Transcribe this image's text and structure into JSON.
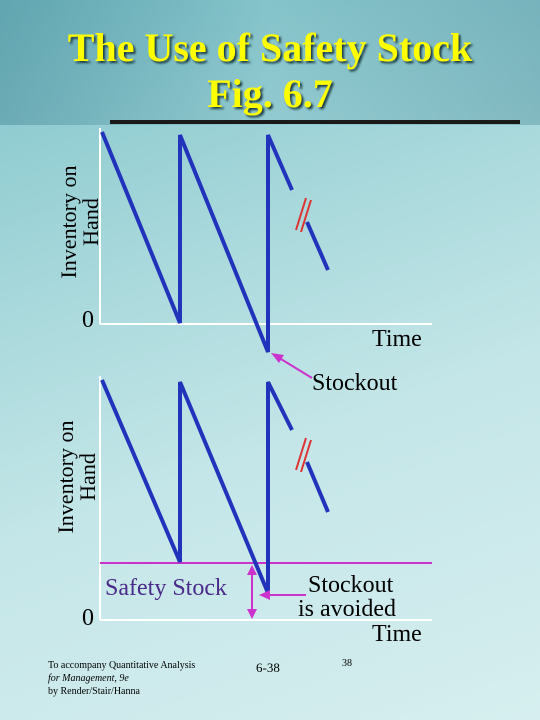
{
  "slide": {
    "title_line1": "The Use of Safety Stock",
    "title_line2": "Fig. 6.7"
  },
  "top_diagram": {
    "y_label_line1": "Inventory on",
    "y_label_line2": "Hand",
    "origin_label": "0",
    "x_label": "Time",
    "stockout_label": "Stockout"
  },
  "bottom_diagram": {
    "y_label_line1": "Inventory on",
    "y_label_line2": "Hand",
    "origin_label": "0",
    "safety_stock_label": "Safety Stock",
    "stockout_avoided_line1": "Stockout",
    "stockout_avoided_line2": "is avoided",
    "x_label": "Time"
  },
  "footer": {
    "credit_line1": "To accompany Quantitative Analysis",
    "credit_line2": "for Management, 9e",
    "credit_line3": "by Render/Stair/Hanna",
    "slide_ref": "6-38",
    "page_number": "38"
  },
  "colors": {
    "title": "#ffff00",
    "sawtooth": "#2233bb",
    "axis": "#ffffff",
    "safety_line": "#cc33cc",
    "arrow": "#cc33cc"
  }
}
